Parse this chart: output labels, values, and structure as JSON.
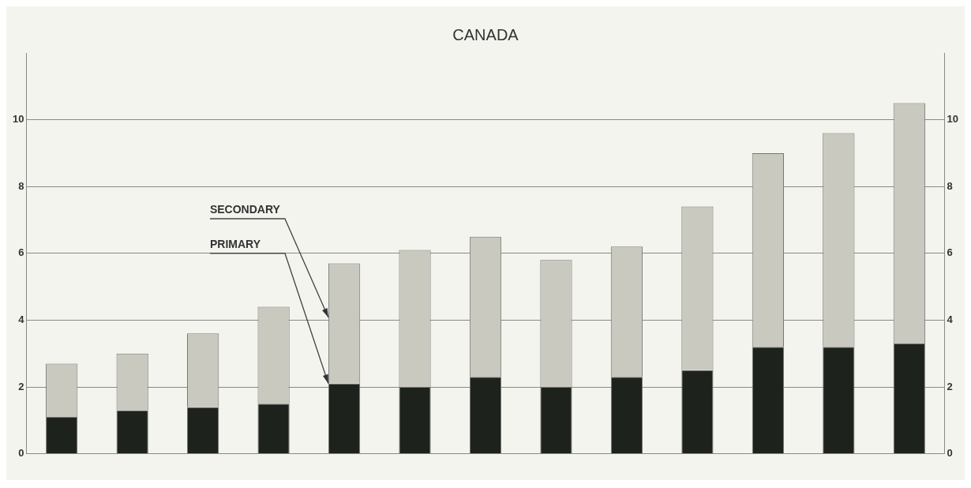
{
  "chart_data": {
    "type": "bar",
    "title": "CANADA",
    "stacked": true,
    "categories": [
      null,
      null,
      null,
      null,
      null,
      null,
      null,
      null,
      null,
      null,
      null,
      null,
      null
    ],
    "series": [
      {
        "name": "PRIMARY",
        "color": "#1e221c",
        "values": [
          1.1,
          1.3,
          1.4,
          1.5,
          2.1,
          2.0,
          2.3,
          2.0,
          2.3,
          2.5,
          3.2,
          3.2,
          3.3
        ]
      },
      {
        "name": "SECONDARY",
        "color": "#c9c9c0",
        "values": [
          1.6,
          1.7,
          2.2,
          2.9,
          3.6,
          4.1,
          4.2,
          3.8,
          3.9,
          4.9,
          5.8,
          6.4,
          7.2
        ]
      }
    ],
    "ylim": [
      0,
      12
    ],
    "yticks": [
      0,
      2,
      4,
      6,
      8,
      10
    ],
    "y2lim": [
      0,
      12
    ],
    "y2ticks": [
      0,
      2,
      4,
      6,
      8,
      10
    ],
    "grid": "y",
    "legend": false
  }
}
